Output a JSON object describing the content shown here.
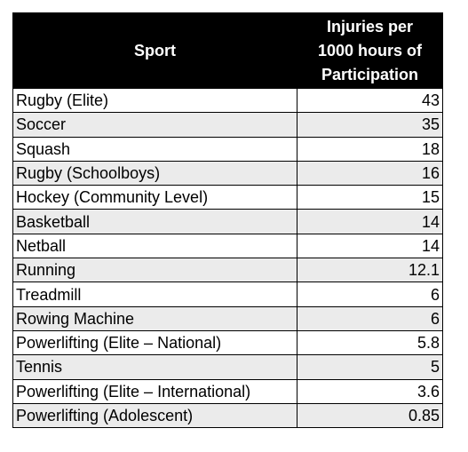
{
  "table": {
    "headers": {
      "sport": "Sport",
      "injuries_lines": [
        "Injuries per",
        "1000 hours of",
        "Participation"
      ]
    },
    "rows": [
      {
        "sport": "Rugby (Elite)",
        "value": "43"
      },
      {
        "sport": "Soccer",
        "value": "35"
      },
      {
        "sport": "Squash",
        "value": "18"
      },
      {
        "sport": "Rugby (Schoolboys)",
        "value": "16"
      },
      {
        "sport": "Hockey (Community Level)",
        "value": "15"
      },
      {
        "sport": "Basketball",
        "value": "14"
      },
      {
        "sport": "Netball",
        "value": "14"
      },
      {
        "sport": "Running",
        "value": "12.1"
      },
      {
        "sport": "Treadmill",
        "value": "6"
      },
      {
        "sport": "Rowing Machine",
        "value": "6"
      },
      {
        "sport": "Powerlifting (Elite – National)",
        "value": "5.8"
      },
      {
        "sport": "Tennis",
        "value": "5"
      },
      {
        "sport": "Powerlifting (Elite – International)",
        "value": "3.6"
      },
      {
        "sport": "Powerlifting (Adolescent)",
        "value": "0.85"
      }
    ]
  },
  "colors": {
    "header_bg": "#000000",
    "header_text": "#ffffff",
    "stripe": "#ebebeb"
  }
}
